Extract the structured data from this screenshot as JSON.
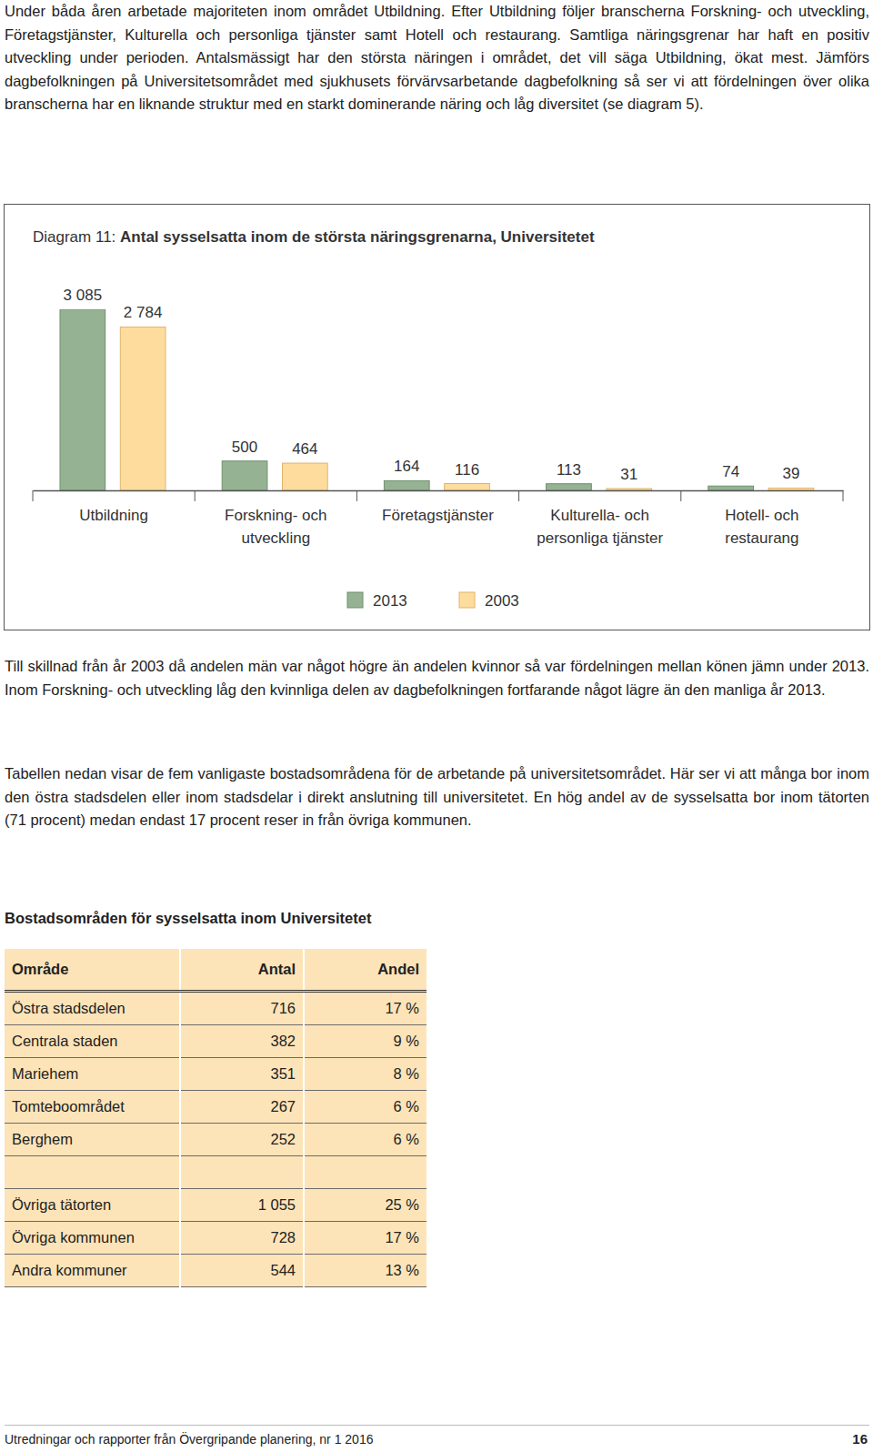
{
  "intro": "Under båda åren arbetade majoriteten inom området Utbildning. Efter Utbildning följer branscherna Forskning- och utveckling, Företagstjänster, Kulturella och personliga tjänster samt Hotell och restaurang. Samtliga näringsgrenar har haft en positiv utveckling under perioden. Antalsmässigt har den största näringen i området, det vill säga Utbildning, ökat mest. Jämförs dagbefolkningen på Universitetsområdet med sjukhusets förvärvsarbetande dagbefolkning så ser vi att fördelningen över olika branscherna har en liknande struktur med en starkt dominerande näring och låg diversitet (se diagram 5).",
  "chart_data": {
    "type": "bar",
    "title": "Diagram 11: Antal sysselsatta inom de största näringsgrenarna, Universitetet",
    "categories": [
      "Utbildning",
      "Forskning- och utveckling",
      "Företagstjänster",
      "Kulturella- och personliga tjänster",
      "Hotell- och restaurang"
    ],
    "series": [
      {
        "name": "2013",
        "color": "#95b393",
        "values": [
          3085,
          500,
          164,
          113,
          74
        ],
        "value_labels": [
          "3 085",
          "500",
          "164",
          "113",
          "74"
        ]
      },
      {
        "name": "2003",
        "color": "#fedc9e",
        "values": [
          2784,
          464,
          116,
          31,
          39
        ],
        "value_labels": [
          "2 784",
          "464",
          "116",
          "31",
          "39"
        ]
      }
    ],
    "ylim": [
      0,
      3085
    ],
    "data_labels": true,
    "tick_labels": "x",
    "legend": "bottom"
  },
  "paragraphs": [
    "Till skillnad från år 2003 då andelen män var något högre än andelen kvinnor så var fördelningen mellan könen jämn under 2013. Inom Forskning- och utveckling låg den kvinnliga delen av dagbefolkningen fortfarande något lägre än den manliga år 2013.",
    "Tabellen nedan visar de fem vanligaste bostadsområdena för de arbetande på universitetsområdet. Här ser vi att många bor inom den östra stadsdelen eller inom stadsdelar i direkt anslutning till universitetet. En hög andel av de sysselsatta bor inom tätorten (71 procent) medan endast 17 procent reser in från övriga kommunen."
  ],
  "table": {
    "title": "Bostadsområden för sysselsatta inom Universitetet",
    "header": [
      "Område",
      "Antal",
      "Andel"
    ],
    "groups": [
      [
        [
          "Östra stadsdelen",
          "716",
          "17 %"
        ],
        [
          "Centrala staden",
          "382",
          "9 %"
        ],
        [
          "Mariehem",
          "351",
          "8 %"
        ],
        [
          "Tomteboområdet",
          "267",
          "6 %"
        ],
        [
          "Berghem",
          "252",
          "6 %"
        ]
      ],
      [
        [
          "Övriga tätorten",
          "1 055",
          "25 %"
        ],
        [
          "Övriga kommunen",
          "728",
          "17 %"
        ],
        [
          "Andra kommuner",
          "544",
          "13 %"
        ]
      ]
    ]
  },
  "footer": {
    "text": "Utredningar och rapporter från Övergripande planering, nr 1 2016",
    "page": "16"
  }
}
